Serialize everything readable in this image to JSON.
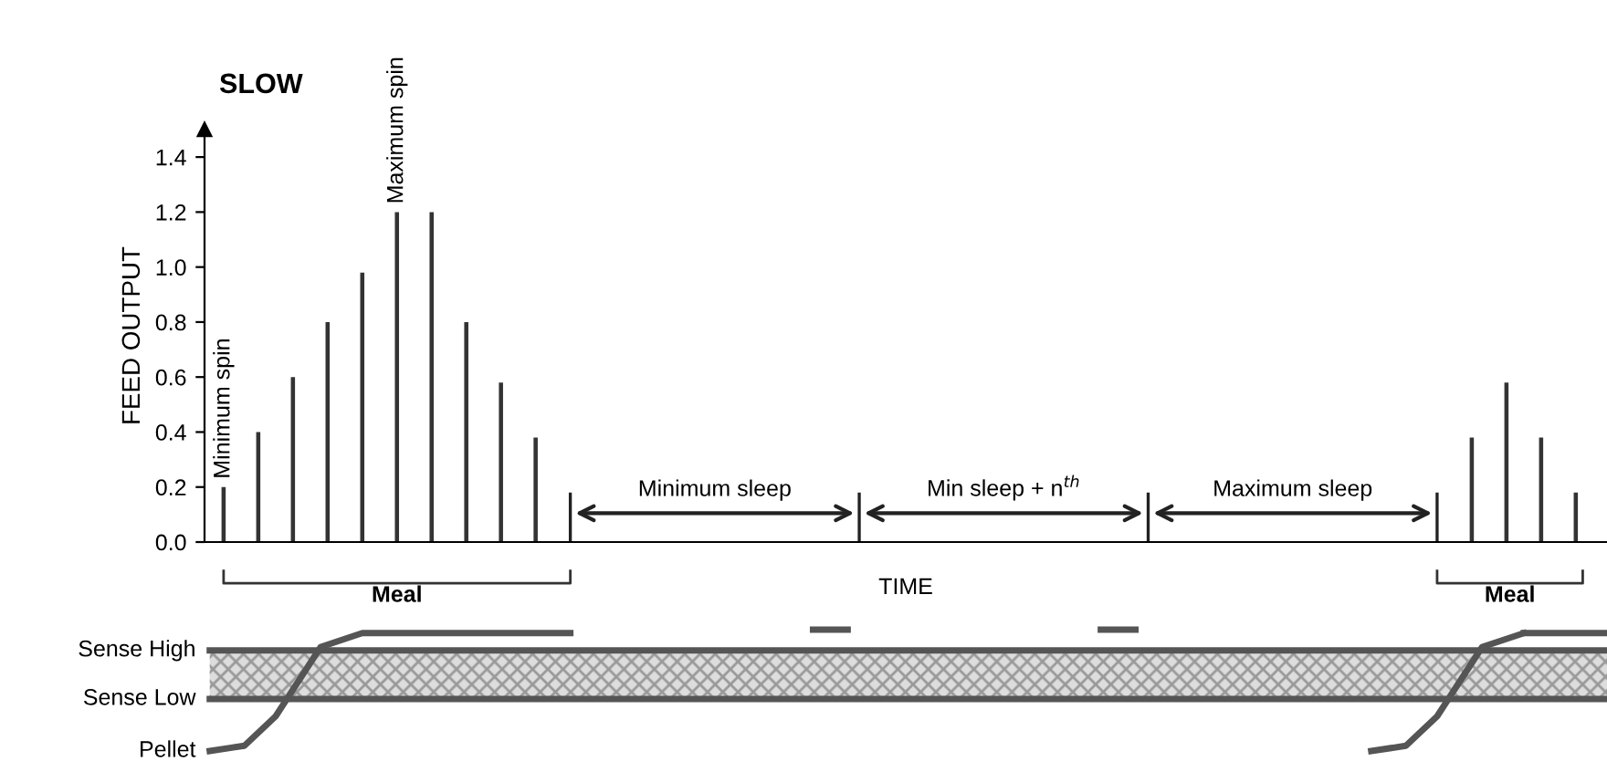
{
  "chart_data": {
    "type": "bar",
    "title": "SLOW",
    "xlabel": "TIME",
    "ylabel": "FEED OUTPUT",
    "categories": [
      null,
      null,
      null,
      null,
      null,
      null,
      null,
      null,
      null,
      null,
      null,
      null,
      null,
      null,
      null,
      null,
      null,
      null,
      null,
      null,
      null,
      null,
      null,
      null,
      null,
      null,
      null,
      null,
      null,
      null,
      null,
      null,
      null,
      null,
      null,
      null,
      null,
      null,
      null,
      null
    ],
    "values": [
      0.2,
      0.4,
      0.6,
      0.8,
      0.98,
      1.2,
      1.2,
      0.8,
      0.58,
      0.38,
      null,
      null,
      null,
      null,
      null,
      null,
      null,
      null,
      null,
      null,
      null,
      null,
      null,
      null,
      null,
      null,
      null,
      null,
      null,
      null,
      null,
      null,
      null,
      null,
      null,
      null,
      0.38,
      0.58,
      0.38,
      0.18
    ],
    "color": "#333333",
    "ylim": [
      0,
      1.5
    ],
    "yticks": [
      {
        "value": 0,
        "label": "0.0"
      },
      {
        "value": 0.2,
        "label": "0.2"
      },
      {
        "value": 0.4,
        "label": "0.4"
      },
      {
        "value": 0.6,
        "label": "0.6"
      },
      {
        "value": 0.8,
        "label": "0.8"
      },
      {
        "value": 1.0,
        "label": "1.0"
      },
      {
        "value": 1.2,
        "label": "1.2"
      },
      {
        "value": 1.4,
        "label": "1.4"
      }
    ],
    "tick_labels": "y",
    "grid": false,
    "legend": false,
    "annotations": [
      "Minimum spin",
      "Maximum spin",
      "Minimum sleep",
      "Min sleep + n$^{th}$",
      "Maximum sleep",
      "Meal",
      "Meal",
      "Sense High",
      "Sense Low",
      "Pellet"
    ]
  }
}
